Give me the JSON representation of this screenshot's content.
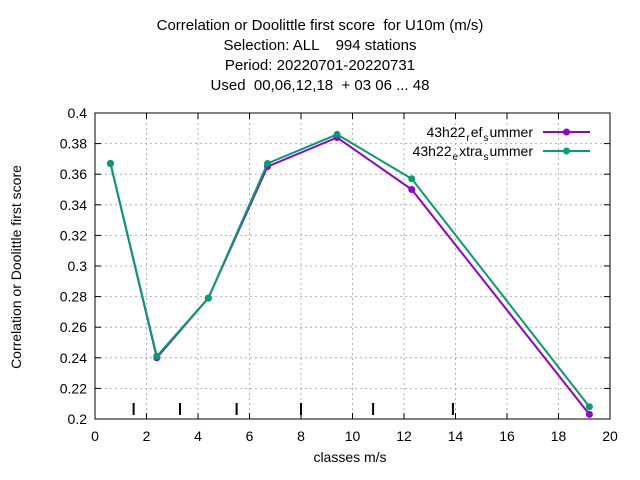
{
  "chart_data": {
    "type": "line",
    "title_lines": [
      "Correlation or Doolittle first score  for U10m (m/s)",
      "Selection: ALL    994 stations",
      "Period: 20220701-20220731",
      "Used  00,06,12,18  + 03 06 ... 48"
    ],
    "xlabel": "classes m/s",
    "ylabel": "Correlation or Doolittle first score",
    "xlim": [
      0,
      20
    ],
    "ylim": [
      0.2,
      0.4
    ],
    "x_ticks": [
      "0",
      "2",
      "4",
      "6",
      "8",
      "10",
      "12",
      "14",
      "16",
      "18",
      "20"
    ],
    "y_ticks": [
      "0.2",
      "0.22",
      "0.24",
      "0.26",
      "0.28",
      "0.3",
      "0.32",
      "0.34",
      "0.36",
      "0.38",
      "0.4"
    ],
    "grid": true,
    "legend_position": "top-right",
    "class_boundaries": [
      1.5,
      3.3,
      5.5,
      8.0,
      10.8,
      13.9
    ],
    "series": [
      {
        "name": "43h22_ref_summer",
        "color": "#9400d3",
        "x": [
          0.6,
          2.4,
          4.4,
          6.7,
          9.4,
          12.3,
          19.2
        ],
        "y": [
          0.367,
          0.24,
          0.279,
          0.365,
          0.384,
          0.35,
          0.203
        ]
      },
      {
        "name": "43h22_extra_summer",
        "color": "#009e73",
        "x": [
          0.6,
          2.4,
          4.4,
          6.7,
          9.4,
          12.3,
          19.2
        ],
        "y": [
          0.367,
          0.241,
          0.279,
          0.367,
          0.386,
          0.357,
          0.208
        ]
      }
    ]
  }
}
